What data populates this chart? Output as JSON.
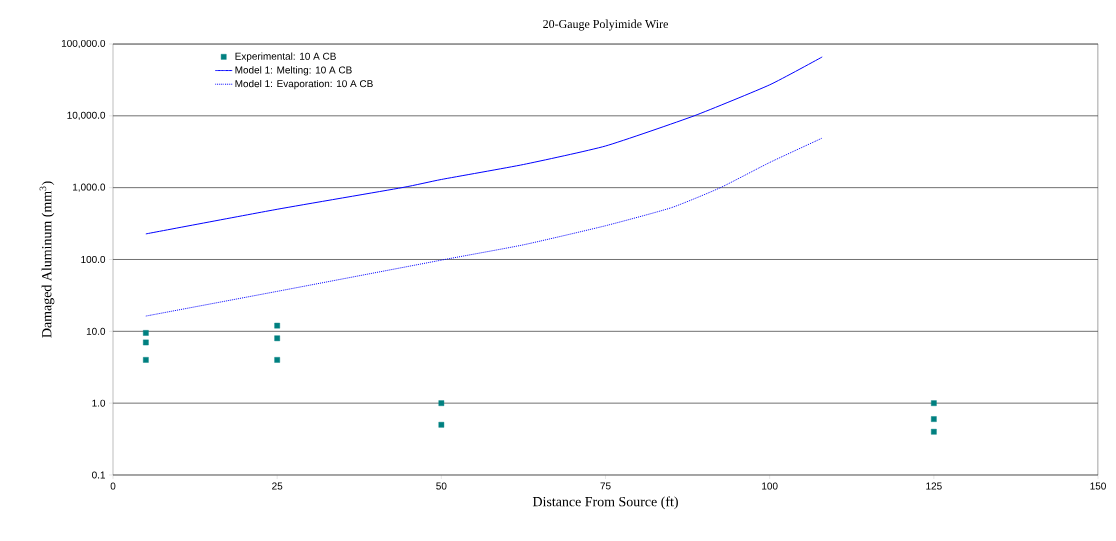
{
  "chart_data": {
    "type": "scatter",
    "title": "20-Gauge Polyimide Wire",
    "xlabel": "Distance From Source (ft)",
    "ylabel": "Damaged Aluminum (mm$^{3}$)",
    "xlim": [
      0,
      150
    ],
    "xticks": [
      0,
      25,
      50,
      75,
      100,
      125,
      150
    ],
    "log": "y",
    "ylim": [
      0.1,
      100000
    ],
    "yticks": [
      {
        "value": 0.1,
        "label": "0.1"
      },
      {
        "value": 1,
        "label": "1.0"
      },
      {
        "value": 10,
        "label": "10.0"
      },
      {
        "value": 100,
        "label": "100.0"
      },
      {
        "value": 1000,
        "label": "1,000.0"
      },
      {
        "value": 10000,
        "label": "10,000.0"
      },
      {
        "value": 100000,
        "label": "100,000.0"
      }
    ],
    "grid": "y",
    "legend": "top left",
    "series": [
      {
        "name": "Experimental: 10 A CB",
        "marker": "square",
        "color": "#008080",
        "x": [
          5,
          5,
          5,
          25,
          25,
          25,
          50,
          50,
          125,
          125,
          125
        ],
        "values": [
          9.5,
          7,
          4,
          12,
          8,
          4,
          1.0,
          0.5,
          1.0,
          0.6,
          0.4
        ]
      },
      {
        "name": "Model 1: Melting: 10 A CB",
        "type": "line",
        "line_style": "solid",
        "color": "#0000ff",
        "x": [
          5,
          25,
          44,
          50,
          62.5,
          75,
          88.5,
          100,
          108
        ],
        "values": [
          227,
          500,
          1000,
          1300,
          2100,
          3800,
          10000,
          27000,
          66000
        ]
      },
      {
        "name": "Model 1: Evaporation: 10 A CB",
        "type": "line",
        "line_style": "dotted",
        "color": "#0000ff",
        "x": [
          5,
          25,
          50,
          62.5,
          75,
          85,
          92.5,
          100,
          108
        ],
        "values": [
          16.3,
          36,
          98,
          160,
          295,
          525,
          1000,
          2240,
          4900
        ]
      }
    ]
  }
}
